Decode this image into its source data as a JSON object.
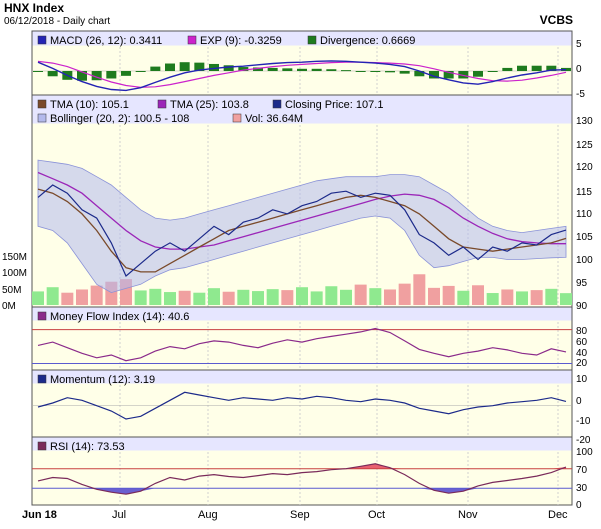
{
  "header": {
    "title": "HNX Index",
    "date_line": "06/12/2018 - Daily chart",
    "brand": "VCBS"
  },
  "colors": {
    "panel_bg": "#ffffe8",
    "legend_bg": "#e6e6ff",
    "band_fill": "#b3b9ec",
    "price_line": "#1c2a8a",
    "tma10": "#7a4a2a",
    "tma25": "#9b26b8",
    "macd": "#2323b4",
    "signal": "#cc22cc",
    "divergence": "#1e7b1e",
    "volume_up": "#8fe98f",
    "volume_down": "#f0a0a0",
    "overbought_fill": "#e86070",
    "oversold_fill": "#6a60d0",
    "ref_line": "#c84040"
  },
  "chart_data": [
    {
      "type": "line",
      "panel": "macd",
      "series": [
        {
          "name": "MACD (26, 12)",
          "legend": "MACD (26, 12): 0.3411",
          "color": "#2323b4",
          "values": [
            2.0,
            0.6,
            -1.0,
            -2.4,
            -3.5,
            -4.2,
            -4.4,
            -3.8,
            -2.6,
            -1.4,
            -0.4,
            0.2,
            0.6,
            0.9,
            1.1,
            1.4,
            1.7,
            1.9,
            2.0,
            2.2,
            2.3,
            2.2,
            2.0,
            1.8,
            1.5,
            1.0,
            0.0,
            -1.2,
            -2.0,
            -2.7,
            -3.0,
            -2.4,
            -1.6,
            -0.9,
            -0.4,
            0.2,
            0.3
          ]
        },
        {
          "name": "EXP (9)",
          "legend": "EXP (9): -0.3259",
          "color": "#cc22cc",
          "values": [
            2.2,
            1.8,
            1.0,
            -0.2,
            -1.4,
            -2.5,
            -3.3,
            -3.7,
            -3.6,
            -3.1,
            -2.4,
            -1.7,
            -1.0,
            -0.4,
            0.2,
            0.6,
            1.0,
            1.3,
            1.5,
            1.7,
            1.9,
            2.0,
            2.0,
            1.9,
            1.8,
            1.6,
            1.2,
            0.5,
            -0.3,
            -1.0,
            -1.7,
            -2.2,
            -2.3,
            -2.1,
            -1.6,
            -1.0,
            -0.3
          ]
        },
        {
          "name": "Divergence",
          "legend": "Divergence: 0.6669",
          "color": "#1e7b1e",
          "values": [
            -0.2,
            -1.2,
            -2.0,
            -2.2,
            -2.1,
            -1.7,
            -1.1,
            -0.1,
            1.0,
            1.7,
            2.0,
            1.9,
            1.6,
            1.3,
            0.9,
            0.8,
            0.7,
            0.6,
            0.5,
            0.5,
            0.4,
            0.2,
            0.0,
            -0.1,
            -0.3,
            -0.6,
            -1.2,
            -1.7,
            -1.7,
            -1.7,
            -1.3,
            -0.2,
            0.7,
            1.2,
            1.2,
            1.2,
            0.7
          ]
        }
      ],
      "y_ticks": [
        "5",
        "0",
        "-5"
      ],
      "ylim": [
        -5,
        5
      ]
    },
    {
      "type": "line",
      "panel": "price",
      "series": [
        {
          "name": "TMA (10)",
          "legend": "TMA (10): 105.1",
          "color": "#7a4a2a",
          "values": [
            117,
            116,
            114,
            111,
            107,
            102,
            98,
            97,
            97,
            99,
            101,
            103,
            105,
            107,
            108,
            109,
            110,
            111,
            112,
            113,
            114,
            115,
            115.5,
            115,
            114,
            113,
            111,
            108,
            105,
            103,
            102.5,
            102,
            102.5,
            103,
            103.5,
            104,
            105.1
          ]
        },
        {
          "name": "TMA (25)",
          "legend": "TMA (25): 103.8",
          "color": "#9b26b8",
          "values": [
            121,
            119.5,
            118,
            116,
            113,
            110,
            107,
            104.5,
            103,
            102.5,
            102.5,
            103,
            103.5,
            104.5,
            105.5,
            106.5,
            107.5,
            108.5,
            109.5,
            110.5,
            111.5,
            112.5,
            113.5,
            114.5,
            115.3,
            115.8,
            115.5,
            114.5,
            112.5,
            110,
            108,
            106.3,
            105,
            104.3,
            104,
            103.8,
            103.8
          ]
        },
        {
          "name": "Closing Price",
          "legend": "Closing Price: 107.1",
          "color": "#1c2a8a",
          "values": [
            115,
            118,
            116,
            112,
            110,
            104,
            96,
            99,
            102,
            104,
            102,
            105,
            108,
            106,
            109,
            110,
            112,
            111,
            113,
            114,
            116,
            116.5,
            115,
            116,
            115.5,
            112,
            106,
            104,
            101,
            103,
            100,
            103,
            102,
            104,
            103.5,
            106,
            107.1
          ]
        },
        {
          "name": "Bollinger (20, 2)",
          "legend": "Bollinger (20, 2): 100.5 - 108",
          "color": "#b3b9ec",
          "upper": [
            124,
            123.5,
            123,
            122,
            120,
            118,
            115,
            112,
            110,
            109.5,
            110,
            111,
            112,
            113,
            114,
            115,
            116,
            117,
            118,
            119,
            119.5,
            120,
            120,
            120,
            120.5,
            120.5,
            120,
            118,
            116,
            113,
            110,
            108,
            107,
            106.5,
            107,
            107.5,
            108
          ],
          "lower": [
            108,
            107,
            104,
            99,
            94,
            92,
            93,
            94,
            96,
            97.5,
            98,
            99,
            100,
            101,
            102,
            103,
            104,
            105,
            106,
            107,
            108,
            109,
            110,
            110.5,
            110,
            107,
            101,
            98,
            98.5,
            99.5,
            100.5,
            100.5,
            100,
            100,
            100.2,
            100.4,
            100.5
          ]
        }
      ],
      "y_ticks": [
        "130",
        "125",
        "120",
        "115",
        "110",
        "105",
        "100",
        "95",
        "90"
      ],
      "ylim": [
        89,
        132
      ]
    },
    {
      "type": "bar",
      "panel": "volume",
      "series": [
        {
          "name": "Vol",
          "legend": "Vol: 36.64M",
          "color": "#f0a0a0",
          "values": [
            42,
            55,
            38,
            48,
            60,
            72,
            80,
            45,
            50,
            40,
            44,
            38,
            52,
            41,
            47,
            43,
            49,
            46,
            55,
            42,
            58,
            47,
            63,
            52,
            48,
            66,
            95,
            53,
            59,
            44,
            61,
            37,
            48,
            42,
            46,
            50,
            36.64
          ]
        }
      ],
      "y_ticks": [
        "150M",
        "100M",
        "50M",
        "0M"
      ],
      "ylim": [
        0,
        170
      ]
    },
    {
      "type": "line",
      "panel": "mfi",
      "series": [
        {
          "name": "Money Flow Index (14)",
          "legend": "Money Flow Index (14): 40.6",
          "color": "#8a2a8a",
          "values": [
            52,
            58,
            48,
            38,
            30,
            35,
            25,
            30,
            42,
            50,
            46,
            55,
            60,
            58,
            52,
            48,
            56,
            62,
            58,
            64,
            68,
            72,
            76,
            82,
            75,
            60,
            45,
            38,
            32,
            38,
            42,
            48,
            44,
            38,
            35,
            46,
            40.6
          ]
        }
      ],
      "y_ticks": [
        "80",
        "60",
        "40",
        "20"
      ],
      "ylim": [
        12,
        90
      ]
    },
    {
      "type": "line",
      "panel": "momentum",
      "series": [
        {
          "name": "Momentum (12)",
          "legend": "Momentum (12): 3.19",
          "color": "#1c2a8a",
          "values": [
            -1,
            2,
            6,
            4,
            0,
            -4,
            -10,
            -8,
            -2,
            4,
            10,
            8,
            6,
            4,
            6,
            5,
            4,
            6,
            5,
            7,
            6,
            4,
            3,
            5,
            4,
            2,
            -2,
            -4,
            -6,
            -3,
            -1,
            0,
            2,
            3,
            4,
            6,
            3.19
          ]
        }
      ],
      "y_ticks": [
        "10",
        "0",
        "-10",
        "-20"
      ],
      "ylim": [
        -22,
        14
      ]
    },
    {
      "type": "line",
      "panel": "rsi",
      "series": [
        {
          "name": "RSI (14)",
          "legend": "RSI (14): 73.53",
          "color": "#7a2a5a",
          "values": [
            45,
            52,
            50,
            38,
            28,
            22,
            18,
            24,
            40,
            52,
            47,
            55,
            58,
            54,
            52,
            56,
            60,
            58,
            62,
            64,
            68,
            70,
            75,
            80,
            72,
            58,
            40,
            26,
            20,
            24,
            35,
            42,
            46,
            50,
            55,
            62,
            73.53
          ]
        }
      ],
      "y_ticks": [
        "100",
        "70",
        "30",
        "0"
      ],
      "ylim": [
        0,
        100
      ]
    }
  ],
  "x_labels": [
    "Jun 18",
    "Jul",
    "Aug",
    "Sep",
    "Oct",
    "Nov",
    "Dec"
  ]
}
